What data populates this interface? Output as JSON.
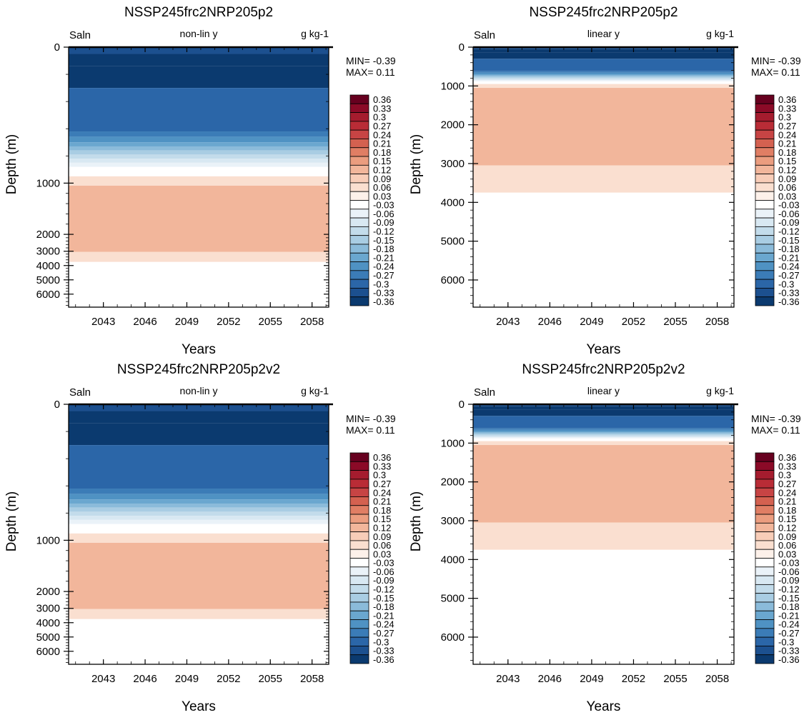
{
  "colorbar": {
    "labels": [
      "0.36",
      "0.33",
      "0.3",
      "0.27",
      "0.24",
      "0.21",
      "0.18",
      "0.15",
      "0.12",
      "0.09",
      "0.06",
      "0.03",
      "-0.03",
      "-0.06",
      "-0.09",
      "-0.12",
      "-0.15",
      "-0.18",
      "-0.21",
      "-0.24",
      "-0.27",
      "-0.3",
      "-0.33",
      "-0.36"
    ],
    "colors": [
      "#67001f",
      "#8b0a27",
      "#a51c2e",
      "#b92c36",
      "#c74444",
      "#d46150",
      "#e07e64",
      "#eb9d7f",
      "#f2b69b",
      "#f8cdb8",
      "#fadfd0",
      "#fdf1ea",
      "#ffffff",
      "#eaf2f8",
      "#d8e8f2",
      "#c3dceb",
      "#a9cde3",
      "#8bbbda",
      "#6aa7cf",
      "#4f92c3",
      "#3b7cb7",
      "#2b66a8",
      "#1c508f",
      "#0b3a6f"
    ]
  },
  "chart_data": [
    {
      "type": "heatmap",
      "title": "NSSP245frc2NRP205p2",
      "left_label": "Saln",
      "center_label": "non-lin y",
      "right_label": "g kg-1",
      "xlabel": "Years",
      "ylabel": "Depth (m)",
      "x_ticks": [
        "2043",
        "2046",
        "2049",
        "2052",
        "2055",
        "2058"
      ],
      "y_ticks": [
        "0",
        "1000",
        "2000",
        "3000",
        "4000",
        "5000",
        "6000"
      ],
      "y_scale": "non-linear",
      "min_text": "MIN= -0.39",
      "max_text": "MAX=  0.11",
      "layers": [
        {
          "depth_top": 0,
          "depth_bottom": 50,
          "value": -0.315
        },
        {
          "depth_top": 50,
          "depth_bottom": 140,
          "value": -0.375
        },
        {
          "depth_top": 140,
          "depth_bottom": 300,
          "value": -0.345
        },
        {
          "depth_top": 300,
          "depth_bottom": 620,
          "value": -0.285
        },
        {
          "depth_top": 620,
          "depth_bottom": 660,
          "value": -0.255
        },
        {
          "depth_top": 660,
          "depth_bottom": 700,
          "value": -0.225
        },
        {
          "depth_top": 700,
          "depth_bottom": 730,
          "value": -0.195
        },
        {
          "depth_top": 730,
          "depth_bottom": 760,
          "value": -0.165
        },
        {
          "depth_top": 760,
          "depth_bottom": 790,
          "value": -0.135
        },
        {
          "depth_top": 790,
          "depth_bottom": 820,
          "value": -0.105
        },
        {
          "depth_top": 820,
          "depth_bottom": 850,
          "value": -0.075
        },
        {
          "depth_top": 850,
          "depth_bottom": 880,
          "value": -0.045
        },
        {
          "depth_top": 880,
          "depth_bottom": 950,
          "value": 0.0
        },
        {
          "depth_top": 950,
          "depth_bottom": 1050,
          "value": 0.045
        },
        {
          "depth_top": 1050,
          "depth_bottom": 3050,
          "value": 0.105
        },
        {
          "depth_top": 3050,
          "depth_bottom": 3750,
          "value": 0.045
        },
        {
          "depth_top": 3750,
          "depth_bottom": 6700,
          "value": 0.0
        }
      ]
    },
    {
      "type": "heatmap",
      "title": "NSSP245frc2NRP205p2",
      "left_label": "Saln",
      "center_label": "linear y",
      "right_label": "g kg-1",
      "xlabel": "Years",
      "ylabel": "Depth (m)",
      "x_ticks": [
        "2043",
        "2046",
        "2049",
        "2052",
        "2055",
        "2058"
      ],
      "y_ticks": [
        "0",
        "1000",
        "2000",
        "3000",
        "4000",
        "5000",
        "6000"
      ],
      "y_scale": "linear",
      "min_text": "MIN= -0.39",
      "max_text": "MAX=  0.11",
      "layers": [
        {
          "depth_top": 0,
          "depth_bottom": 50,
          "value": -0.315
        },
        {
          "depth_top": 50,
          "depth_bottom": 140,
          "value": -0.375
        },
        {
          "depth_top": 140,
          "depth_bottom": 300,
          "value": -0.345
        },
        {
          "depth_top": 300,
          "depth_bottom": 620,
          "value": -0.285
        },
        {
          "depth_top": 620,
          "depth_bottom": 660,
          "value": -0.255
        },
        {
          "depth_top": 660,
          "depth_bottom": 700,
          "value": -0.225
        },
        {
          "depth_top": 700,
          "depth_bottom": 730,
          "value": -0.195
        },
        {
          "depth_top": 730,
          "depth_bottom": 760,
          "value": -0.165
        },
        {
          "depth_top": 760,
          "depth_bottom": 790,
          "value": -0.135
        },
        {
          "depth_top": 790,
          "depth_bottom": 820,
          "value": -0.105
        },
        {
          "depth_top": 820,
          "depth_bottom": 850,
          "value": -0.075
        },
        {
          "depth_top": 850,
          "depth_bottom": 880,
          "value": -0.045
        },
        {
          "depth_top": 880,
          "depth_bottom": 950,
          "value": 0.0
        },
        {
          "depth_top": 950,
          "depth_bottom": 1050,
          "value": 0.045
        },
        {
          "depth_top": 1050,
          "depth_bottom": 3050,
          "value": 0.105
        },
        {
          "depth_top": 3050,
          "depth_bottom": 3750,
          "value": 0.045
        },
        {
          "depth_top": 3750,
          "depth_bottom": 6700,
          "value": 0.0
        }
      ]
    },
    {
      "type": "heatmap",
      "title": "NSSP245frc2NRP205p2v2",
      "left_label": "Saln",
      "center_label": "non-lin y",
      "right_label": "g kg-1",
      "xlabel": "Years",
      "ylabel": "Depth (m)",
      "x_ticks": [
        "2043",
        "2046",
        "2049",
        "2052",
        "2055",
        "2058"
      ],
      "y_ticks": [
        "0",
        "1000",
        "2000",
        "3000",
        "4000",
        "5000",
        "6000"
      ],
      "y_scale": "non-linear",
      "min_text": "MIN= -0.39",
      "max_text": "MAX=  0.11",
      "layers": [
        {
          "depth_top": 0,
          "depth_bottom": 50,
          "value": -0.315
        },
        {
          "depth_top": 50,
          "depth_bottom": 140,
          "value": -0.375
        },
        {
          "depth_top": 140,
          "depth_bottom": 300,
          "value": -0.345
        },
        {
          "depth_top": 300,
          "depth_bottom": 620,
          "value": -0.285
        },
        {
          "depth_top": 620,
          "depth_bottom": 660,
          "value": -0.255
        },
        {
          "depth_top": 660,
          "depth_bottom": 700,
          "value": -0.225
        },
        {
          "depth_top": 700,
          "depth_bottom": 730,
          "value": -0.195
        },
        {
          "depth_top": 730,
          "depth_bottom": 760,
          "value": -0.165
        },
        {
          "depth_top": 760,
          "depth_bottom": 790,
          "value": -0.135
        },
        {
          "depth_top": 790,
          "depth_bottom": 820,
          "value": -0.105
        },
        {
          "depth_top": 820,
          "depth_bottom": 850,
          "value": -0.075
        },
        {
          "depth_top": 850,
          "depth_bottom": 880,
          "value": -0.045
        },
        {
          "depth_top": 880,
          "depth_bottom": 950,
          "value": 0.0
        },
        {
          "depth_top": 950,
          "depth_bottom": 1050,
          "value": 0.045
        },
        {
          "depth_top": 1050,
          "depth_bottom": 3050,
          "value": 0.105
        },
        {
          "depth_top": 3050,
          "depth_bottom": 3750,
          "value": 0.045
        },
        {
          "depth_top": 3750,
          "depth_bottom": 6700,
          "value": 0.0
        }
      ]
    },
    {
      "type": "heatmap",
      "title": "NSSP245frc2NRP205p2v2",
      "left_label": "Saln",
      "center_label": "linear y",
      "right_label": "g kg-1",
      "xlabel": "Years",
      "ylabel": "Depth (m)",
      "x_ticks": [
        "2043",
        "2046",
        "2049",
        "2052",
        "2055",
        "2058"
      ],
      "y_ticks": [
        "0",
        "1000",
        "2000",
        "3000",
        "4000",
        "5000",
        "6000"
      ],
      "y_scale": "linear",
      "min_text": "MIN= -0.39",
      "max_text": "MAX=  0.11",
      "layers": [
        {
          "depth_top": 0,
          "depth_bottom": 50,
          "value": -0.315
        },
        {
          "depth_top": 50,
          "depth_bottom": 140,
          "value": -0.375
        },
        {
          "depth_top": 140,
          "depth_bottom": 300,
          "value": -0.345
        },
        {
          "depth_top": 300,
          "depth_bottom": 620,
          "value": -0.285
        },
        {
          "depth_top": 620,
          "depth_bottom": 660,
          "value": -0.255
        },
        {
          "depth_top": 660,
          "depth_bottom": 700,
          "value": -0.225
        },
        {
          "depth_top": 700,
          "depth_bottom": 730,
          "value": -0.195
        },
        {
          "depth_top": 730,
          "depth_bottom": 760,
          "value": -0.165
        },
        {
          "depth_top": 760,
          "depth_bottom": 790,
          "value": -0.135
        },
        {
          "depth_top": 790,
          "depth_bottom": 820,
          "value": -0.105
        },
        {
          "depth_top": 820,
          "depth_bottom": 850,
          "value": -0.075
        },
        {
          "depth_top": 850,
          "depth_bottom": 880,
          "value": -0.045
        },
        {
          "depth_top": 880,
          "depth_bottom": 950,
          "value": 0.0
        },
        {
          "depth_top": 950,
          "depth_bottom": 1050,
          "value": 0.045
        },
        {
          "depth_top": 1050,
          "depth_bottom": 3050,
          "value": 0.105
        },
        {
          "depth_top": 3050,
          "depth_bottom": 3750,
          "value": 0.045
        },
        {
          "depth_top": 3750,
          "depth_bottom": 6700,
          "value": 0.0
        }
      ]
    }
  ]
}
